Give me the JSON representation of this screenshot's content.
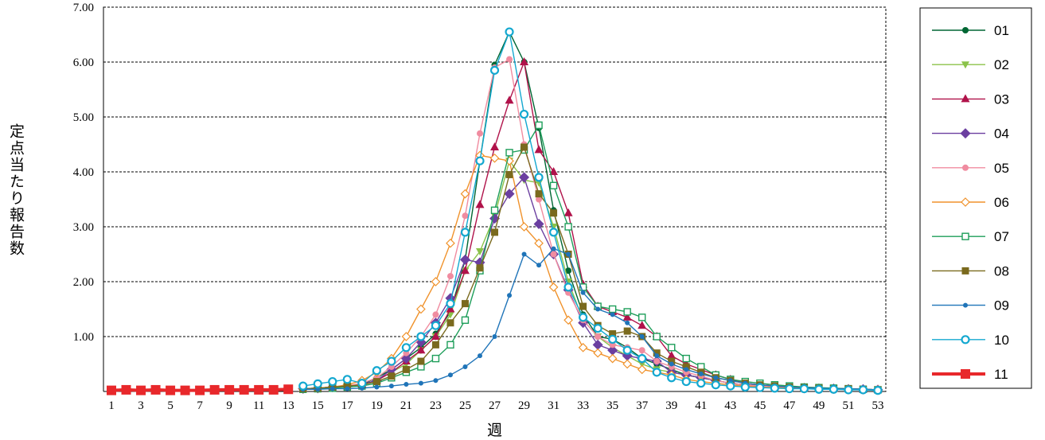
{
  "chart_data": {
    "type": "line",
    "title": "",
    "xlabel": "週",
    "ylabel": "定点当たり報告数",
    "ylim": [
      0,
      7
    ],
    "xlim": [
      1,
      53
    ],
    "y_tick_labels": [
      "1.00",
      "2.00",
      "3.00",
      "4.00",
      "5.00",
      "6.00",
      "7.00"
    ],
    "x_tick_labels": [
      "1",
      "3",
      "5",
      "7",
      "9",
      "11",
      "13",
      "15",
      "17",
      "19",
      "21",
      "23",
      "25",
      "27",
      "29",
      "31",
      "33",
      "35",
      "37",
      "39",
      "41",
      "43",
      "45",
      "47",
      "49",
      "51",
      "53"
    ],
    "grid": "horizontal dashed",
    "legend_placement": "right",
    "weeks": [
      1,
      2,
      3,
      4,
      5,
      6,
      7,
      8,
      9,
      10,
      11,
      12,
      13,
      14,
      15,
      16,
      17,
      18,
      19,
      20,
      21,
      22,
      23,
      24,
      25,
      26,
      27,
      28,
      29,
      30,
      31,
      32,
      33,
      34,
      35,
      36,
      37,
      38,
      39,
      40,
      41,
      42,
      43,
      44,
      45,
      46,
      47,
      48,
      49,
      50,
      51,
      52,
      53
    ],
    "series": [
      {
        "name": "01",
        "color": "#006633",
        "marker": "circle",
        "values": [
          null,
          null,
          null,
          null,
          null,
          null,
          null,
          null,
          null,
          null,
          null,
          null,
          null,
          0.05,
          0.06,
          0.08,
          0.1,
          0.13,
          0.25,
          0.4,
          0.6,
          0.8,
          1.05,
          1.45,
          2.4,
          4.2,
          5.95,
          6.55,
          6.0,
          4.8,
          3.3,
          2.2,
          1.4,
          1.0,
          0.95,
          0.8,
          0.6,
          0.5,
          0.4,
          0.3,
          0.25,
          0.2,
          0.15,
          0.12,
          0.1,
          0.08,
          0.07,
          0.06,
          0.05,
          0.05,
          0.04,
          0.04,
          0.03
        ]
      },
      {
        "name": "02",
        "color": "#8BC34A",
        "marker": "triangle-down",
        "values": [
          null,
          null,
          null,
          null,
          null,
          null,
          null,
          null,
          null,
          null,
          null,
          null,
          null,
          0.05,
          0.06,
          0.08,
          0.1,
          0.12,
          0.2,
          0.35,
          0.5,
          0.75,
          1.0,
          1.4,
          2.2,
          2.55,
          3.2,
          4.2,
          3.85,
          3.8,
          3.0,
          2.0,
          1.3,
          1.0,
          0.8,
          0.65,
          0.5,
          0.4,
          0.35,
          0.3,
          0.25,
          0.2,
          0.15,
          0.12,
          0.1,
          0.08,
          0.07,
          0.06,
          0.05,
          0.05,
          0.04,
          0.04,
          0.03
        ]
      },
      {
        "name": "03",
        "color": "#B0124A",
        "marker": "triangle-up",
        "values": [
          null,
          null,
          null,
          null,
          null,
          null,
          null,
          null,
          null,
          null,
          null,
          null,
          null,
          0.05,
          0.06,
          0.08,
          0.1,
          0.13,
          0.2,
          0.35,
          0.55,
          0.75,
          1.0,
          1.5,
          2.2,
          3.4,
          4.45,
          5.3,
          6.0,
          4.4,
          4.0,
          3.25,
          1.95,
          1.55,
          1.45,
          1.35,
          1.2,
          1.0,
          0.65,
          0.5,
          0.4,
          0.3,
          0.22,
          0.15,
          0.12,
          0.1,
          0.08,
          0.07,
          0.06,
          0.05,
          0.05,
          0.04,
          0.03
        ]
      },
      {
        "name": "04",
        "color": "#6B3FA0",
        "marker": "diamond",
        "values": [
          null,
          null,
          null,
          null,
          null,
          null,
          null,
          null,
          null,
          null,
          null,
          null,
          null,
          0.05,
          0.06,
          0.08,
          0.1,
          0.13,
          0.2,
          0.4,
          0.6,
          0.9,
          1.25,
          1.7,
          2.4,
          2.35,
          3.15,
          3.6,
          3.9,
          3.05,
          2.5,
          1.85,
          1.25,
          0.85,
          0.75,
          0.65,
          0.6,
          0.55,
          0.35,
          0.3,
          0.25,
          0.2,
          0.15,
          0.12,
          0.1,
          0.08,
          0.07,
          0.06,
          0.05,
          0.05,
          0.04,
          0.04,
          0.03
        ]
      },
      {
        "name": "05",
        "color": "#F08CA0",
        "marker": "circle",
        "values": [
          null,
          null,
          null,
          null,
          null,
          null,
          null,
          null,
          null,
          null,
          null,
          null,
          null,
          0.05,
          0.06,
          0.08,
          0.1,
          0.15,
          0.25,
          0.45,
          0.7,
          1.0,
          1.4,
          2.1,
          3.2,
          4.7,
          5.9,
          6.05,
          4.5,
          3.5,
          2.5,
          1.8,
          1.3,
          1.0,
          0.85,
          0.8,
          0.75,
          0.55,
          0.45,
          0.35,
          0.28,
          0.2,
          0.15,
          0.12,
          0.1,
          0.08,
          0.07,
          0.06,
          0.05,
          0.05,
          0.04,
          0.04,
          0.03
        ]
      },
      {
        "name": "06",
        "color": "#F0922B",
        "marker": "open-diamond",
        "values": [
          null,
          null,
          null,
          null,
          null,
          null,
          null,
          null,
          null,
          null,
          null,
          null,
          null,
          0.05,
          0.06,
          0.08,
          0.12,
          0.2,
          0.35,
          0.6,
          1.0,
          1.5,
          2.0,
          2.7,
          3.6,
          4.3,
          4.25,
          4.2,
          3.0,
          2.7,
          1.9,
          1.3,
          0.8,
          0.7,
          0.6,
          0.5,
          0.4,
          0.35,
          0.3,
          0.22,
          0.18,
          0.15,
          0.12,
          0.1,
          0.08,
          0.07,
          0.06,
          0.05,
          0.05,
          0.04,
          0.04,
          0.03,
          0.03
        ]
      },
      {
        "name": "07",
        "color": "#1E9E5A",
        "marker": "open-square",
        "values": [
          null,
          null,
          null,
          null,
          null,
          null,
          null,
          null,
          null,
          null,
          null,
          null,
          null,
          0.04,
          0.05,
          0.06,
          0.08,
          0.1,
          0.15,
          0.25,
          0.35,
          0.45,
          0.6,
          0.85,
          1.3,
          2.2,
          3.3,
          4.35,
          4.4,
          4.85,
          3.75,
          3.0,
          1.9,
          1.55,
          1.5,
          1.45,
          1.35,
          1.0,
          0.8,
          0.6,
          0.45,
          0.3,
          0.22,
          0.18,
          0.15,
          0.12,
          0.1,
          0.08,
          0.07,
          0.06,
          0.05,
          0.04,
          0.03
        ]
      },
      {
        "name": "08",
        "color": "#7A6A1E",
        "marker": "square",
        "values": [
          null,
          null,
          null,
          null,
          null,
          null,
          null,
          null,
          null,
          null,
          null,
          null,
          null,
          0.05,
          0.06,
          0.08,
          0.1,
          0.12,
          0.18,
          0.28,
          0.4,
          0.55,
          0.85,
          1.25,
          1.6,
          2.25,
          2.9,
          3.95,
          4.45,
          3.6,
          3.25,
          2.5,
          1.55,
          1.2,
          1.05,
          1.1,
          1.0,
          0.7,
          0.55,
          0.45,
          0.35,
          0.25,
          0.2,
          0.15,
          0.12,
          0.1,
          0.08,
          0.07,
          0.06,
          0.05,
          0.05,
          0.04,
          0.03
        ]
      },
      {
        "name": "09",
        "color": "#1F74B8",
        "marker": "small-circle",
        "values": [
          null,
          null,
          null,
          null,
          null,
          null,
          null,
          null,
          null,
          null,
          null,
          null,
          null,
          0.04,
          0.04,
          0.05,
          0.05,
          0.06,
          0.08,
          0.1,
          0.13,
          0.15,
          0.2,
          0.3,
          0.45,
          0.65,
          1.0,
          1.75,
          2.5,
          2.3,
          2.6,
          2.5,
          1.8,
          1.5,
          1.4,
          1.25,
          1.0,
          0.65,
          0.5,
          0.4,
          0.32,
          0.25,
          0.2,
          0.15,
          0.12,
          0.1,
          0.08,
          0.07,
          0.06,
          0.05,
          0.05,
          0.04,
          0.03
        ]
      },
      {
        "name": "10",
        "color": "#14A8D0",
        "marker": "open-circle",
        "values": [
          null,
          null,
          null,
          null,
          null,
          null,
          null,
          null,
          null,
          null,
          null,
          null,
          null,
          0.1,
          0.14,
          0.18,
          0.22,
          0.15,
          0.38,
          0.55,
          0.8,
          1.0,
          1.2,
          1.6,
          2.9,
          4.2,
          5.85,
          6.55,
          5.05,
          3.9,
          2.9,
          1.9,
          1.35,
          1.15,
          0.95,
          0.75,
          0.6,
          0.35,
          0.25,
          0.18,
          0.15,
          0.12,
          0.1,
          0.08,
          0.07,
          0.06,
          0.05,
          0.05,
          0.04,
          0.04,
          0.03,
          0.03,
          0.02
        ]
      },
      {
        "name": "11",
        "color": "#E8282B",
        "marker": "square-bold",
        "values": [
          0.02,
          0.03,
          0.02,
          0.03,
          0.02,
          0.02,
          0.02,
          0.03,
          0.03,
          0.03,
          0.03,
          0.03,
          0.04,
          null,
          null,
          null,
          null,
          null,
          null,
          null,
          null,
          null,
          null,
          null,
          null,
          null,
          null,
          null,
          null,
          null,
          null,
          null,
          null,
          null,
          null,
          null,
          null,
          null,
          null,
          null,
          null,
          null,
          null,
          null,
          null,
          null,
          null,
          null,
          null,
          null,
          null,
          null,
          null
        ]
      }
    ]
  }
}
